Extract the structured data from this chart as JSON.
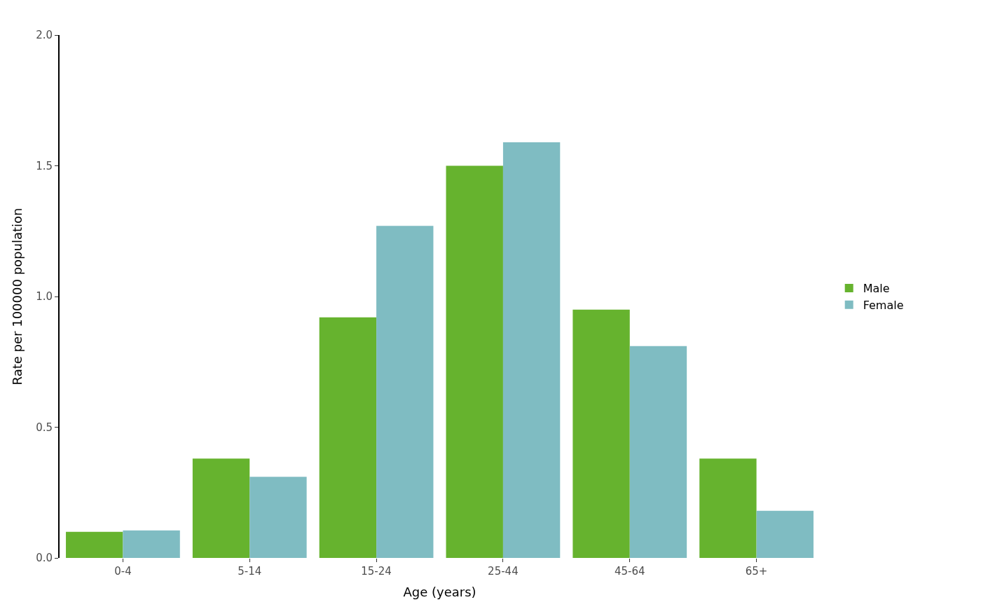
{
  "chart_data": {
    "type": "bar",
    "xlabel": "Age (years)",
    "ylabel": "Rate per 100000 population",
    "categories": [
      "0-4",
      "5-14",
      "15-24",
      "25-44",
      "45-64",
      "65+"
    ],
    "series": [
      {
        "name": "Male",
        "color": "#66b32e",
        "values": [
          0.1,
          0.38,
          0.92,
          1.5,
          0.95,
          0.38
        ]
      },
      {
        "name": "Female",
        "color": "#7fbcc2",
        "values": [
          0.105,
          0.31,
          1.27,
          1.59,
          0.81,
          0.18
        ]
      }
    ],
    "ylim": [
      0,
      2
    ],
    "yticks": [
      {
        "value": 0,
        "label": "0.0"
      },
      {
        "value": 0.5,
        "label": "0.5"
      },
      {
        "value": 1,
        "label": "1.0"
      },
      {
        "value": 1.5,
        "label": "1.5"
      },
      {
        "value": 2,
        "label": "2.0"
      }
    ],
    "legend": "right"
  }
}
